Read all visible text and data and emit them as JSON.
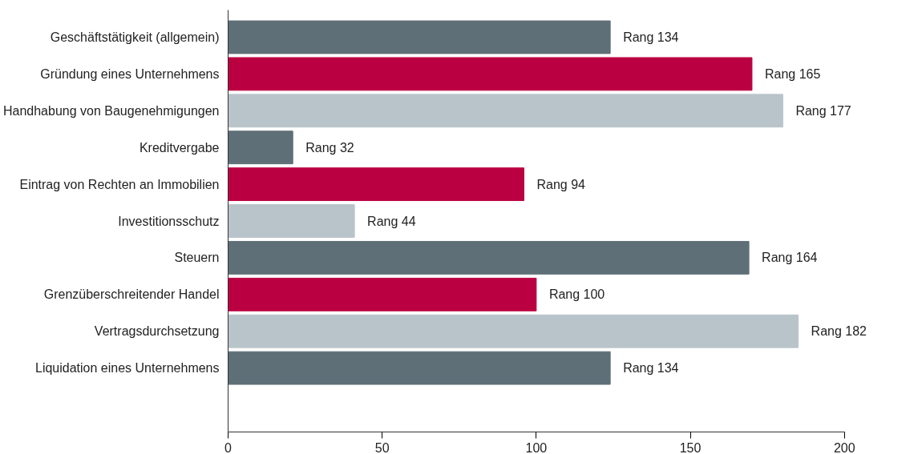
{
  "chart_data": {
    "type": "bar",
    "orientation": "horizontal",
    "categories": [
      "Geschäftstätigkeit (allgemein)",
      "Gründung eines Unternehmens",
      "Handhabung von Baugenehmigungen",
      "Kreditvergabe",
      "Eintrag von Rechten an Immobilien",
      "Investitionsschutz",
      "Steuern",
      "Grenzüberschreitender Handel",
      "Vertragsdurchsetzung",
      "Liquidation eines Unternehmens"
    ],
    "values": [
      124,
      170,
      180,
      21,
      96,
      41,
      169,
      100,
      185,
      124
    ],
    "colors": [
      "#5f6f78",
      "#bb0041",
      "#b9c4ca",
      "#5f6f78",
      "#bb0041",
      "#b9c4ca",
      "#5f6f78",
      "#bb0041",
      "#b9c4ca",
      "#5f6f78"
    ],
    "value_labels": [
      "Rang 134",
      "Rang 165",
      "Rang 177",
      "Rang 32",
      "Rang 94",
      "Rang 44",
      "Rang 164",
      "Rang 100",
      "Rang 182",
      "Rang 134"
    ],
    "xlim": [
      0,
      200
    ],
    "xticks": [
      0,
      50,
      100,
      150,
      200
    ]
  }
}
